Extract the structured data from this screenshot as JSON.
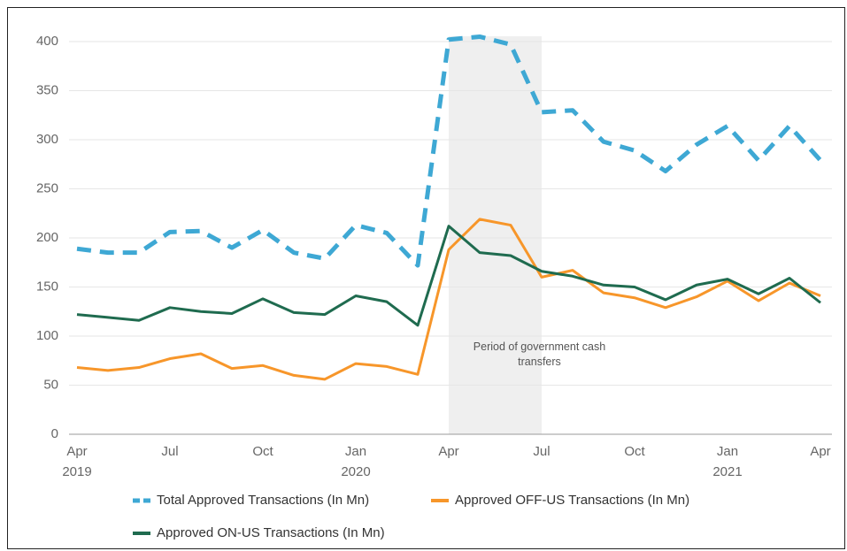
{
  "chart_data": {
    "type": "line",
    "categories": [
      "Apr 2019",
      null,
      null,
      "Jul",
      null,
      null,
      "Oct",
      null,
      null,
      "Jan 2020",
      null,
      null,
      "Apr",
      null,
      null,
      "Jul",
      null,
      null,
      "Oct",
      null,
      null,
      "Jan 2021",
      null,
      null,
      "Apr"
    ],
    "series": [
      {
        "name": "Total Approved Transactions (In Mn)",
        "color": "#3ea8d4",
        "dashed": true,
        "values": [
          189,
          185,
          185,
          206,
          207,
          190,
          208,
          185,
          179,
          213,
          205,
          172,
          402,
          405,
          397,
          328,
          330,
          298,
          289,
          268,
          295,
          314,
          279,
          314,
          279
        ]
      },
      {
        "name": "Approved OFF-US Transactions (In Mn)",
        "color": "#f7962a",
        "dashed": false,
        "values": [
          68,
          65,
          68,
          77,
          82,
          67,
          70,
          60,
          56,
          72,
          69,
          61,
          188,
          219,
          213,
          160,
          167,
          144,
          139,
          129,
          140,
          156,
          136,
          154,
          141
        ]
      },
      {
        "name": "Approved ON-US Transactions (In Mn)",
        "color": "#1f6b4f",
        "dashed": false,
        "values": [
          122,
          119,
          116,
          129,
          125,
          123,
          138,
          124,
          122,
          141,
          135,
          111,
          212,
          185,
          182,
          166,
          161,
          152,
          150,
          137,
          152,
          158,
          143,
          159,
          134
        ]
      }
    ],
    "ylim": [
      0,
      400
    ],
    "yticks": [
      0,
      50,
      100,
      150,
      200,
      250,
      300,
      350,
      400
    ],
    "grid": true,
    "annotation": {
      "text": "Period of government cash transfers",
      "x_start": 12,
      "x_end": 15
    }
  }
}
